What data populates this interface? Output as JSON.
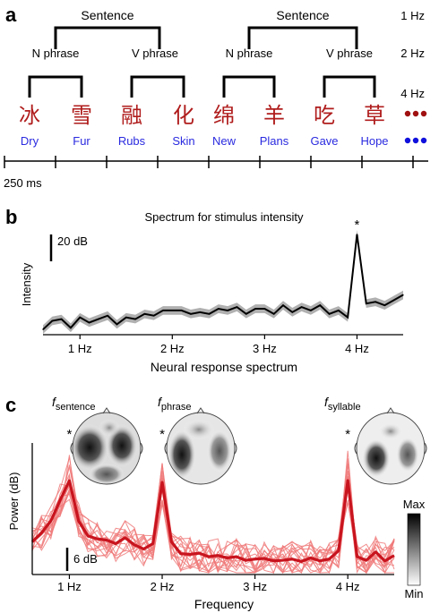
{
  "panel_a": {
    "label": "a",
    "tree_level_sentence": "Sentence",
    "tree_level_noun_phrase": "N phrase",
    "tree_level_verb_phrase": "V phrase",
    "rates": [
      "1 Hz",
      "2 Hz",
      "4 Hz"
    ],
    "syllables_cn": [
      "冰",
      "雪",
      "融",
      "化",
      "绵",
      "羊",
      "吃",
      "草"
    ],
    "syllables_en": [
      "Dry",
      "Fur",
      "Rubs",
      "Skin",
      "New",
      "Plans",
      "Gave",
      "Hope"
    ],
    "timescale_label": "250 ms",
    "colors": {
      "chinese": "#b01c1c",
      "english": "#2a2ae0",
      "dots_cn": "#a01010",
      "dots_en": "#1010dd"
    }
  },
  "panel_b": {
    "label": "b",
    "title": "Spectrum for stimulus intensity",
    "scalebar_label": "20 dB",
    "ylabel": "Intensity",
    "xlabel": "Neural response spectrum",
    "star": "*"
  },
  "panel_c": {
    "label": "c",
    "topo_labels": [
      {
        "f": "f",
        "sub": "sentence"
      },
      {
        "f": "f",
        "sub": "phrase"
      },
      {
        "f": "f",
        "sub": "syllable"
      }
    ],
    "star": "*",
    "scalebar_label": "6 dB",
    "ylabel": "Power (dB)",
    "xlabel": "Frequency",
    "colorbar_max": "Max",
    "colorbar_min": "Min",
    "colors": {
      "mean": "#c8141e",
      "individual": "#f07a7a",
      "band": "#f5a0a0"
    }
  },
  "chart_data": [
    {
      "type": "line",
      "panel": "b",
      "title": "Spectrum for stimulus intensity",
      "xlabel": "Neural response spectrum",
      "ylabel": "Intensity",
      "x_ticks": [
        "1 Hz",
        "2 Hz",
        "3 Hz",
        "4 Hz"
      ],
      "xlim": [
        0.6,
        4.5
      ],
      "ylim_db": [
        0,
        60
      ],
      "x": [
        0.6,
        0.7,
        0.8,
        0.9,
        1.0,
        1.1,
        1.2,
        1.3,
        1.4,
        1.5,
        1.6,
        1.7,
        1.8,
        1.9,
        2.0,
        2.1,
        2.2,
        2.3,
        2.4,
        2.5,
        2.6,
        2.7,
        2.8,
        2.9,
        3.0,
        3.1,
        3.2,
        3.3,
        3.4,
        3.5,
        3.6,
        3.7,
        3.8,
        3.9,
        4.0,
        4.1,
        4.2,
        4.3,
        4.4,
        4.5
      ],
      "values": [
        3,
        8,
        9,
        4,
        10,
        7,
        9,
        11,
        6,
        10,
        9,
        12,
        11,
        14,
        14,
        14,
        12,
        13,
        12,
        15,
        14,
        16,
        12,
        15,
        15,
        12,
        17,
        13,
        16,
        14,
        17,
        12,
        14,
        10,
        58,
        18,
        19,
        17,
        20,
        23
      ],
      "band_halfwidth": 2.5
    },
    {
      "type": "line",
      "panel": "c",
      "xlabel": "Frequency",
      "ylabel": "Power (dB)",
      "x_ticks": [
        "1 Hz",
        "2 Hz",
        "3 Hz",
        "4 Hz"
      ],
      "xlim": [
        0.6,
        4.5
      ],
      "ylim_db": [
        0,
        22
      ],
      "series": [
        {
          "role": "mean",
          "x": [
            0.6,
            0.7,
            0.8,
            0.9,
            1.0,
            1.1,
            1.2,
            1.3,
            1.4,
            1.5,
            1.6,
            1.7,
            1.8,
            1.9,
            2.0,
            2.1,
            2.2,
            2.3,
            2.4,
            2.5,
            2.6,
            2.7,
            2.8,
            2.9,
            3.0,
            3.1,
            3.2,
            3.3,
            3.4,
            3.5,
            3.6,
            3.7,
            3.8,
            3.9,
            4.0,
            4.1,
            4.2,
            4.3,
            4.4,
            4.5
          ],
          "values": [
            5.5,
            7.0,
            9.0,
            12.5,
            15.8,
            9.0,
            6.5,
            6.0,
            5.8,
            5.2,
            6.2,
            5.0,
            4.3,
            5.2,
            15.5,
            5.5,
            3.5,
            3.4,
            3.6,
            3.0,
            3.2,
            2.8,
            3.0,
            2.4,
            2.6,
            2.7,
            2.3,
            2.4,
            2.6,
            2.2,
            2.8,
            2.3,
            2.6,
            4.0,
            15.8,
            3.0,
            2.4,
            3.8,
            2.3,
            3.2
          ]
        }
      ],
      "individual_count": 16,
      "topographies": [
        "sentence",
        "phrase",
        "syllable"
      ]
    }
  ]
}
